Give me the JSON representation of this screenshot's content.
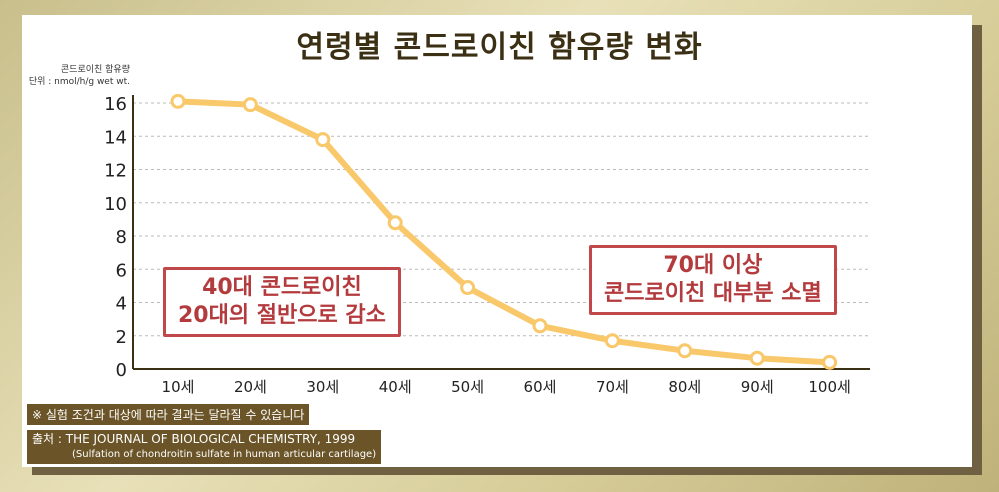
{
  "chart_data": {
    "type": "line",
    "title": "연령별 콘드로이친 함유량 변화",
    "ylabel": "콘드로이친 함유량",
    "yunit": "단위 : nmol/h/g wet wt.",
    "categories": [
      "10세",
      "20세",
      "30세",
      "40세",
      "50세",
      "60세",
      "70세",
      "80세",
      "90세",
      "100세"
    ],
    "values": [
      16.1,
      15.9,
      13.8,
      8.8,
      4.9,
      2.6,
      1.7,
      1.1,
      0.65,
      0.4
    ],
    "ylim": [
      0,
      16
    ],
    "yticks": [
      0,
      2,
      4,
      6,
      8,
      10,
      12,
      14,
      16
    ],
    "grid": true,
    "line_color": "#f9c86a",
    "annotations": [
      {
        "lines": [
          "40대 콘드로이친",
          "20대의 절반으로 감소"
        ]
      },
      {
        "lines": [
          "70대 이상",
          "콘드로이친 대부분 소멸"
        ]
      }
    ]
  },
  "notes": {
    "disclaimer": "※ 실험 조건과 대상에 따라 결과는 달라질 수 있습니다",
    "source": "출처 : THE JOURNAL OF BIOLOGICAL CHEMISTRY, 1999",
    "source_sub": "(Sulfation of chondroitin sulfate in human articular cartilage)"
  }
}
